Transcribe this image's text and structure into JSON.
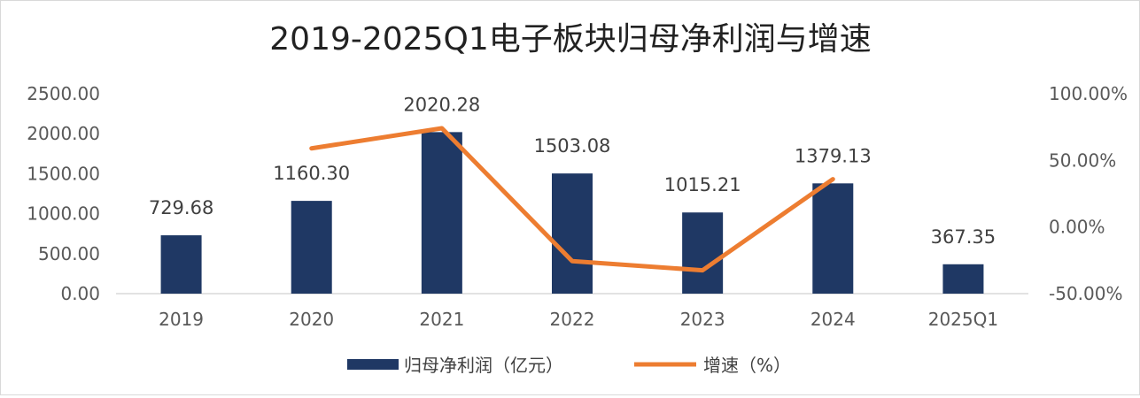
{
  "chart_data": {
    "type": "bar",
    "title": "2019-2025Q1电子板块归母净利润与增速",
    "categories": [
      "2019",
      "2020",
      "2021",
      "2022",
      "2023",
      "2024",
      "2025Q1"
    ],
    "series": [
      {
        "name": "归母净利润（亿元）",
        "type": "bar",
        "axis": "left",
        "values": [
          729.68,
          1160.3,
          2020.28,
          1503.08,
          1015.21,
          1379.13,
          367.35
        ],
        "labels": [
          "729.68",
          "1160.30",
          "2020.28",
          "1503.08",
          "1015.21",
          "1379.13",
          "367.35"
        ],
        "color": "#1f3864"
      },
      {
        "name": "增速（%）",
        "type": "line",
        "axis": "right",
        "values": [
          null,
          59.0,
          74.1,
          -25.6,
          -32.5,
          35.9,
          null
        ],
        "color": "#ed7d31"
      }
    ],
    "y_left": {
      "ylim": [
        0,
        2500
      ],
      "ticks": [
        "0.00",
        "500.00",
        "1000.00",
        "1500.00",
        "2000.00",
        "2500.00"
      ]
    },
    "y_right": {
      "ylim": [
        -50,
        100
      ],
      "ticks": [
        "-50.00%",
        "0.00%",
        "50.00%",
        "100.00%"
      ]
    },
    "grid": false,
    "legend_position": "bottom"
  }
}
